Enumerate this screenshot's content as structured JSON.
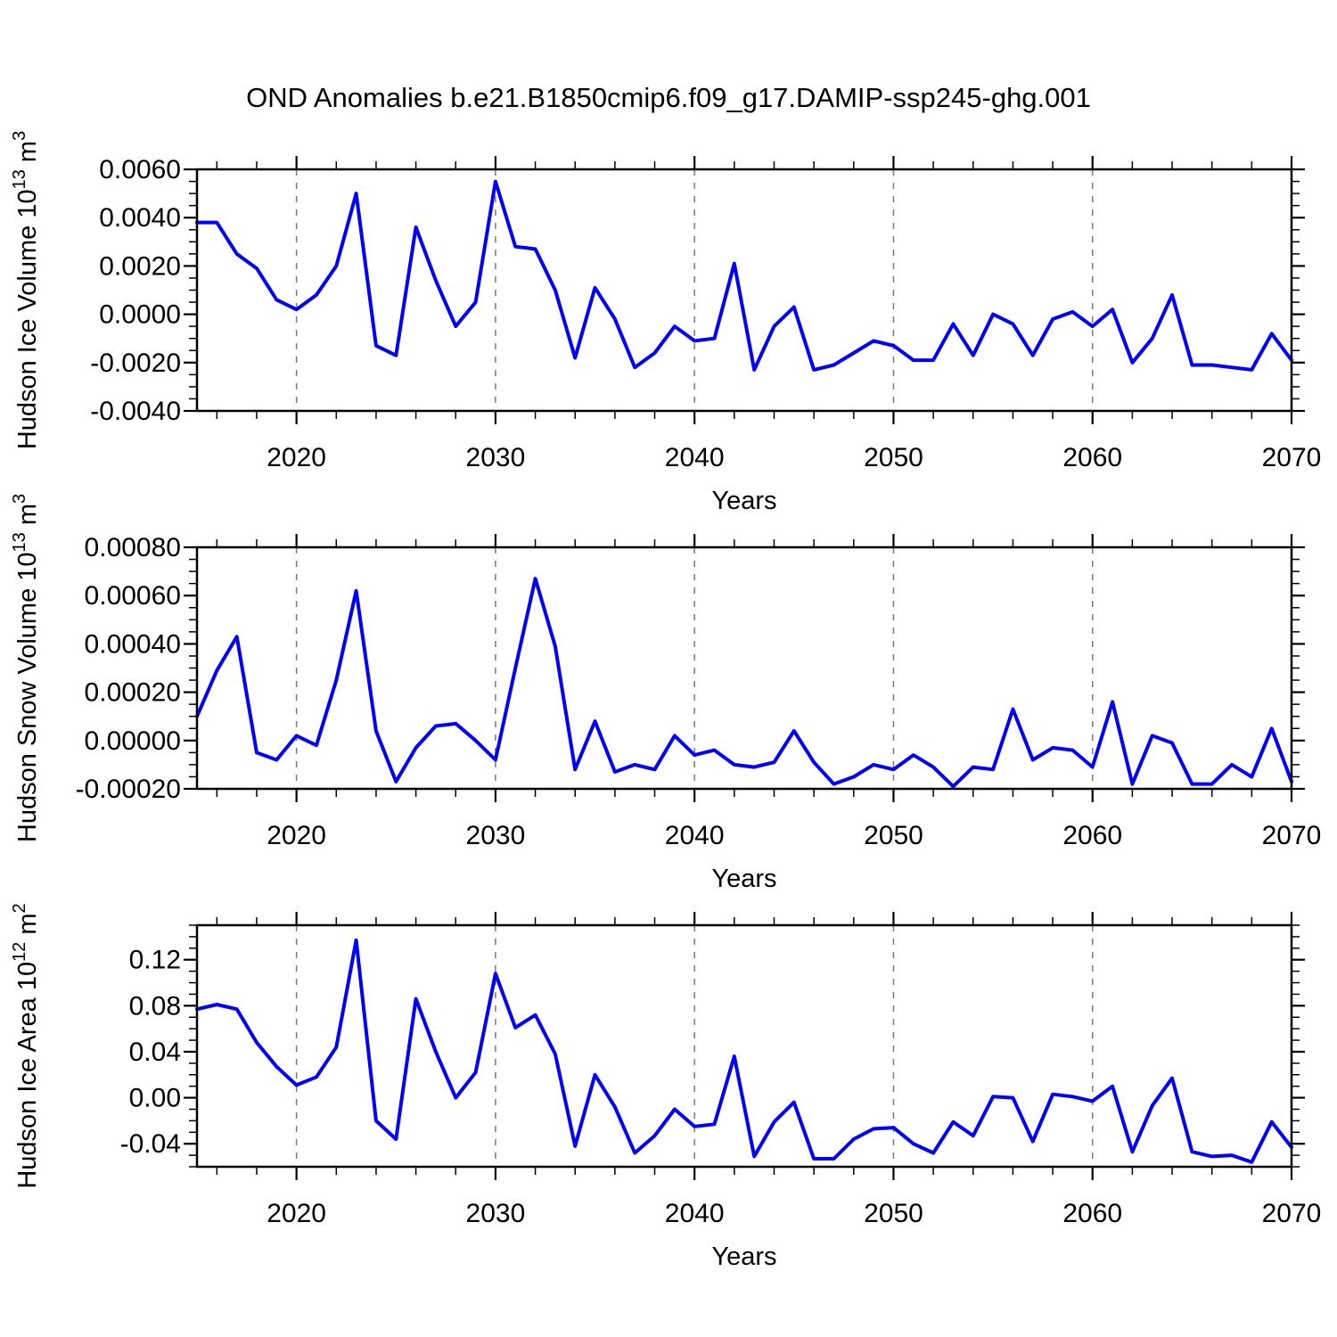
{
  "title": "OND Anomalies b.e21.B1850cmip6.f09_g17.DAMIP-ssp245-ghg.001",
  "chart_data": {
    "type": "line",
    "legend": "none",
    "grid": "vertical dashed lines at decade years",
    "line_color": "#0000ff",
    "axis_color": "#000000",
    "gridline_color": "#7a7a7a",
    "xlabel": "Years",
    "xlim": [
      2015,
      2070
    ],
    "x_ticks_major": [
      2020,
      2030,
      2040,
      2050,
      2060,
      2070
    ],
    "x_tick_labels": [
      "2020",
      "2030",
      "2040",
      "2050",
      "2060",
      "2070"
    ],
    "x_minor_step": 2,
    "gridline_years": [
      2020,
      2030,
      2040,
      2050,
      2060
    ],
    "x": [
      2015,
      2016,
      2017,
      2018,
      2019,
      2020,
      2021,
      2022,
      2023,
      2024,
      2025,
      2026,
      2027,
      2028,
      2029,
      2030,
      2031,
      2032,
      2033,
      2034,
      2035,
      2036,
      2037,
      2038,
      2039,
      2040,
      2041,
      2042,
      2043,
      2044,
      2045,
      2046,
      2047,
      2048,
      2049,
      2050,
      2051,
      2052,
      2053,
      2054,
      2055,
      2056,
      2057,
      2058,
      2059,
      2060,
      2061,
      2062,
      2063,
      2064,
      2065,
      2066,
      2067,
      2068,
      2069,
      2070
    ],
    "panels": [
      {
        "name": "hudson-ice-volume",
        "ylabel": "Hudson Ice Volume 10^13 m^3",
        "ylabel_parts": [
          {
            "t": "Hudson Ice Volume 10"
          },
          {
            "t": "13",
            "sup": true
          },
          {
            "t": " m"
          },
          {
            "t": "3",
            "sup": true
          }
        ],
        "xlabel": "Years",
        "ylim": [
          -0.004,
          0.006
        ],
        "yticks": [
          0.006,
          0.004,
          0.002,
          0.0,
          -0.002,
          -0.004
        ],
        "ytick_labels": [
          "0.0060",
          "0.0040",
          "0.0020",
          "0.0000",
          "-0.0020",
          "-0.0040"
        ],
        "y_minor_step": 0.0005,
        "values": [
          0.0038,
          0.0038,
          0.0025,
          0.0019,
          0.0006,
          0.0002,
          0.0008,
          0.002,
          0.005,
          -0.0013,
          -0.0017,
          0.0036,
          0.0014,
          -0.0005,
          0.0005,
          0.0055,
          0.0028,
          0.0027,
          0.001,
          -0.0018,
          0.0011,
          -0.0002,
          -0.0022,
          -0.0016,
          -0.0005,
          -0.0011,
          -0.001,
          0.0021,
          -0.0023,
          -0.0005,
          0.0003,
          -0.0023,
          -0.0021,
          -0.0016,
          -0.0011,
          -0.0013,
          -0.0019,
          -0.0019,
          -0.0004,
          -0.0017,
          0.0,
          -0.0004,
          -0.0017,
          -0.0002,
          0.0001,
          -0.0005,
          0.0002,
          -0.002,
          -0.001,
          0.0008,
          -0.0021,
          -0.0021,
          -0.0022,
          -0.0023,
          -0.0008,
          -0.0019
        ]
      },
      {
        "name": "hudson-snow-volume",
        "ylabel": "Hudson Snow Volume 10^13 m^3",
        "ylabel_parts": [
          {
            "t": "Hudson Snow Volume 10"
          },
          {
            "t": "13",
            "sup": true
          },
          {
            "t": " m"
          },
          {
            "t": "3",
            "sup": true
          }
        ],
        "xlabel": "Years",
        "ylim": [
          -0.0002,
          0.0008
        ],
        "yticks": [
          0.0008,
          0.0006,
          0.0004,
          0.0002,
          0.0,
          -0.0002
        ],
        "ytick_labels": [
          "0.00080",
          "0.00060",
          "0.00040",
          "0.00020",
          "0.00000",
          "-0.00020"
        ],
        "y_minor_step": 5e-05,
        "values": [
          0.0001,
          0.00029,
          0.00043,
          -5e-05,
          -8e-05,
          2e-05,
          -2e-05,
          0.00025,
          0.00062,
          4e-05,
          -0.00017,
          -3e-05,
          6e-05,
          7e-05,
          0.0,
          -8e-05,
          0.0003,
          0.00067,
          0.00039,
          -0.00012,
          8e-05,
          -0.00013,
          -0.0001,
          -0.00012,
          2e-05,
          -6e-05,
          -4e-05,
          -0.0001,
          -0.00011,
          -9e-05,
          4e-05,
          -9e-05,
          -0.00018,
          -0.00015,
          -0.0001,
          -0.00012,
          -6e-05,
          -0.00011,
          -0.00019,
          -0.00011,
          -0.00012,
          0.00013,
          -8e-05,
          -3e-05,
          -4e-05,
          -0.00011,
          0.00016,
          -0.00018,
          2e-05,
          -1e-05,
          -0.00018,
          -0.00018,
          -0.0001,
          -0.00015,
          5e-05,
          -0.00017
        ]
      },
      {
        "name": "hudson-ice-area",
        "ylabel": "Hudson Ice Area 10^12 m^2",
        "ylabel_parts": [
          {
            "t": "Hudson Ice Area 10"
          },
          {
            "t": "12",
            "sup": true
          },
          {
            "t": " m"
          },
          {
            "t": "2",
            "sup": true
          }
        ],
        "xlabel": "Years",
        "ylim": [
          -0.06,
          0.15
        ],
        "yticks": [
          0.12,
          0.08,
          0.04,
          0.0,
          -0.04
        ],
        "ytick_labels": [
          "0.12",
          "0.08",
          "0.04",
          "0.00",
          "-0.04"
        ],
        "y_minor_step": 0.01,
        "values": [
          0.077,
          0.081,
          0.077,
          0.048,
          0.027,
          0.011,
          0.018,
          0.044,
          0.137,
          -0.02,
          -0.036,
          0.086,
          0.04,
          0.0,
          0.022,
          0.108,
          0.061,
          0.072,
          0.038,
          -0.042,
          0.02,
          -0.008,
          -0.048,
          -0.033,
          -0.01,
          -0.025,
          -0.023,
          0.036,
          -0.051,
          -0.021,
          -0.004,
          -0.053,
          -0.053,
          -0.036,
          -0.027,
          -0.026,
          -0.04,
          -0.048,
          -0.021,
          -0.033,
          0.001,
          0.0,
          -0.038,
          0.003,
          0.001,
          -0.003,
          0.01,
          -0.047,
          -0.007,
          0.017,
          -0.047,
          -0.051,
          -0.05,
          -0.056,
          -0.021,
          -0.043
        ]
      }
    ]
  }
}
